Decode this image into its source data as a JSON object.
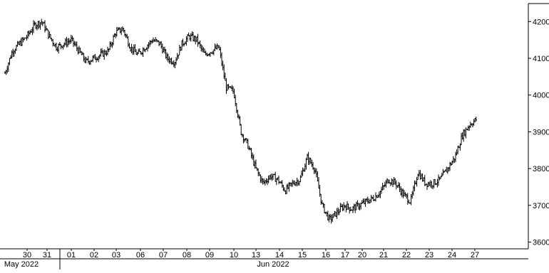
{
  "chart_data": {
    "type": "line",
    "style": "ohlc-bars",
    "x_axis": {
      "day_labels": [
        "30",
        "31",
        "01",
        "02",
        "03",
        "06",
        "07",
        "08",
        "09",
        "10",
        "13",
        "14",
        "15",
        "16",
        "17",
        "20",
        "21",
        "22",
        "23",
        "24",
        "27"
      ],
      "month_labels": [
        "May 2022",
        "Jun 2022"
      ]
    },
    "y_axis": {
      "position": "right",
      "ticks": [
        3600,
        3700,
        3800,
        3900,
        4000,
        4100,
        4200
      ],
      "tick_labels": [
        "3600",
        "3700",
        "3800",
        "3900",
        "4000",
        "4100",
        "4200"
      ],
      "ylim": [
        3590,
        4225
      ]
    },
    "grid": false,
    "series": [
      {
        "x": [
          "2022-05-27 open",
          "2022-05-27 mid",
          "2022-05-27 close",
          "2022-05-30 open",
          "2022-05-30 mid",
          "2022-05-30 close",
          "2022-05-31 open",
          "2022-05-31 mid",
          "2022-05-31 close",
          "2022-06-01 open",
          "2022-06-01 mid",
          "2022-06-01 close",
          "2022-06-02 open",
          "2022-06-02 mid",
          "2022-06-02 close",
          "2022-06-03 open",
          "2022-06-03 mid",
          "2022-06-03 close",
          "2022-06-06 open",
          "2022-06-06 mid",
          "2022-06-06 close",
          "2022-06-07 open",
          "2022-06-07 mid",
          "2022-06-07 close",
          "2022-06-08 open",
          "2022-06-08 mid",
          "2022-06-08 close",
          "2022-06-09 open",
          "2022-06-09 mid",
          "2022-06-09 close",
          "2022-06-10 open",
          "2022-06-10 mid",
          "2022-06-10 close",
          "2022-06-13 open",
          "2022-06-13 mid",
          "2022-06-13 close",
          "2022-06-14 open",
          "2022-06-14 mid",
          "2022-06-14 close",
          "2022-06-15 open",
          "2022-06-15 mid",
          "2022-06-15 close",
          "2022-06-16 open",
          "2022-06-16 mid",
          "2022-06-16 close",
          "2022-06-17 open",
          "2022-06-17 mid",
          "2022-06-17 close",
          "2022-06-20 open",
          "2022-06-20 mid",
          "2022-06-20 close",
          "2022-06-21 open",
          "2022-06-21 mid",
          "2022-06-21 close",
          "2022-06-22 open",
          "2022-06-22 mid",
          "2022-06-22 close",
          "2022-06-23 open",
          "2022-06-23 mid",
          "2022-06-23 close",
          "2022-06-24 open",
          "2022-06-24 mid",
          "2022-06-24 close",
          "2022-06-27 open",
          "2022-06-27 mid"
        ],
        "values": [
          4060,
          4120,
          4140,
          4160,
          4190,
          4200,
          4160,
          4130,
          4140,
          4150,
          4120,
          4090,
          4100,
          4110,
          4120,
          4170,
          4180,
          4130,
          4110,
          4130,
          4150,
          4140,
          4100,
          4090,
          4140,
          4160,
          4150,
          4110,
          4120,
          4130,
          4020,
          4010,
          3900,
          3860,
          3800,
          3760,
          3780,
          3770,
          3740,
          3760,
          3770,
          3830,
          3800,
          3700,
          3660,
          3680,
          3700,
          3690,
          3700,
          3710,
          3720,
          3740,
          3770,
          3760,
          3730,
          3710,
          3790,
          3760,
          3760,
          3770,
          3800,
          3830,
          3890,
          3920,
          3935
        ]
      }
    ]
  }
}
